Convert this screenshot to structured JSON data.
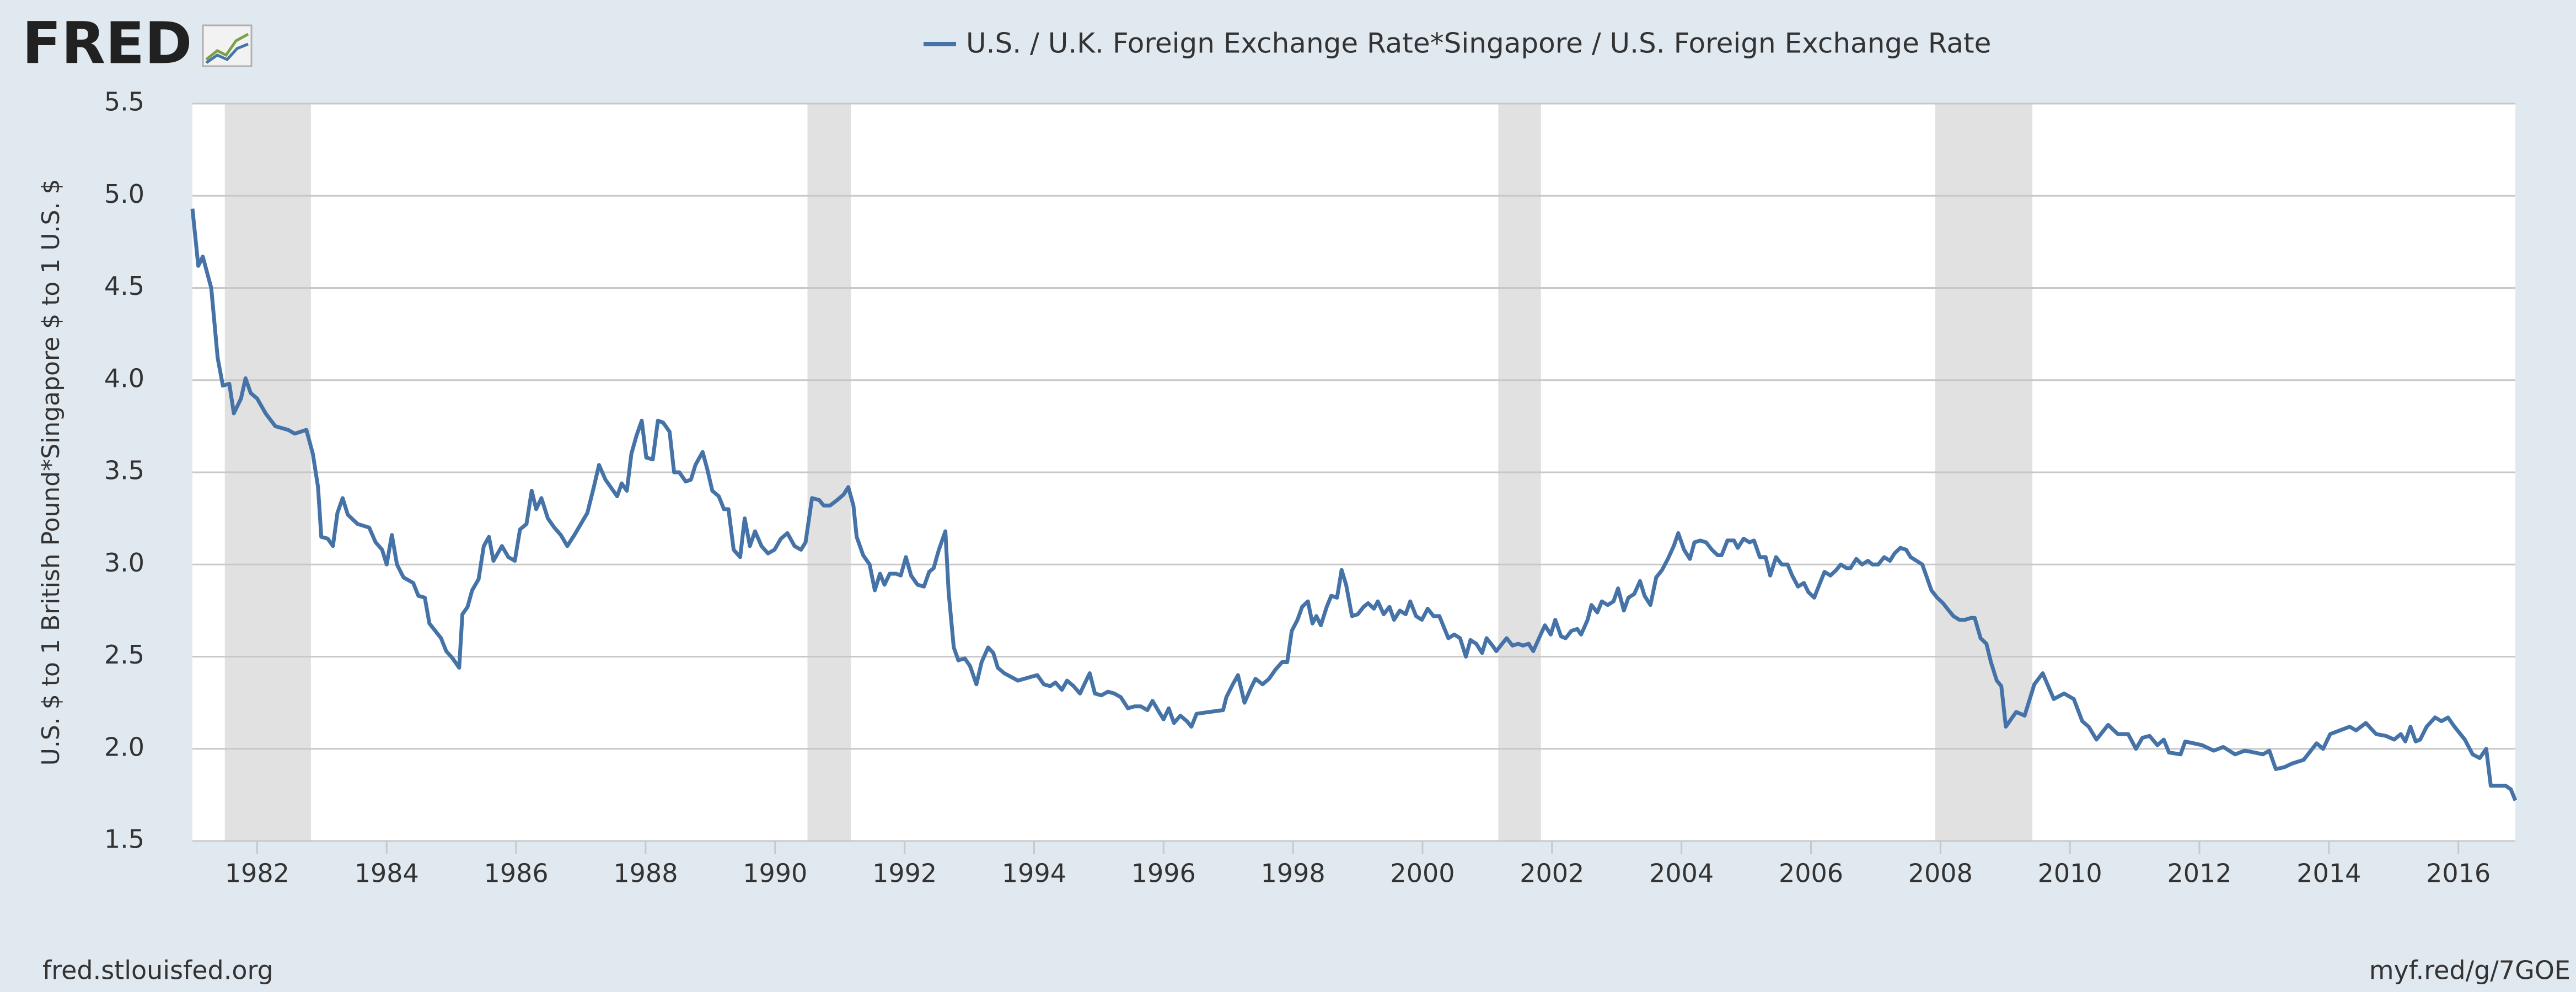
{
  "logo": "FRED",
  "footer": {
    "left": "fred.stlouisfed.org",
    "right": "myf.red/g/7GOE"
  },
  "chart_data": {
    "type": "line",
    "ylabel": "U.S. $ to 1 British Pound*Singapore $ to 1 U.S. $",
    "xlim": [
      1981.0,
      2016.88
    ],
    "ylim": [
      1.5,
      5.5
    ],
    "xticks": [
      1982,
      1984,
      1986,
      1988,
      1990,
      1992,
      1994,
      1996,
      1998,
      2000,
      2002,
      2004,
      2006,
      2008,
      2010,
      2012,
      2014,
      2016
    ],
    "yticks": [
      1.5,
      {
        "value": 2,
        "label": "2.0"
      },
      2.5,
      {
        "value": 3,
        "label": "3.0"
      },
      3.5,
      {
        "value": 4,
        "label": "4.0"
      },
      4.5,
      {
        "value": 5,
        "label": "5.0"
      },
      5.5
    ],
    "grid": true,
    "recessions": [
      [
        1981.5,
        1982.83
      ],
      [
        1990.5,
        1991.17
      ],
      [
        2001.17,
        2001.83
      ],
      [
        2007.92,
        2009.42
      ]
    ],
    "x": [
      1981.0,
      1981.09,
      1981.16,
      1981.29,
      1981.39,
      1981.47,
      1981.57,
      1981.64,
      1981.75,
      1981.82,
      1981.9,
      1982.0,
      1982.13,
      1982.28,
      1982.48,
      1982.58,
      1982.76,
      1982.86,
      1982.94,
      1982.99,
      1983.09,
      1983.17,
      1983.24,
      1983.32,
      1983.4,
      1983.55,
      1983.73,
      1983.83,
      1983.93,
      1984.0,
      1984.08,
      1984.16,
      1984.26,
      1984.41,
      1984.49,
      1984.59,
      1984.66,
      1984.84,
      1984.92,
      1985.02,
      1985.12,
      1985.17,
      1985.25,
      1985.32,
      1985.42,
      1985.5,
      1985.58,
      1985.65,
      1985.78,
      1985.88,
      1985.98,
      1986.06,
      1986.16,
      1986.24,
      1986.31,
      1986.39,
      1986.49,
      1986.59,
      1986.69,
      1986.79,
      1986.9,
      1987.0,
      1987.1,
      1987.2,
      1987.28,
      1987.38,
      1987.48,
      1987.56,
      1987.63,
      1987.71,
      1987.78,
      1987.86,
      1987.94,
      1988.01,
      1988.11,
      1988.19,
      1988.27,
      1988.37,
      1988.44,
      1988.52,
      1988.62,
      1988.7,
      1988.77,
      1988.88,
      1988.95,
      1989.03,
      1989.13,
      1989.21,
      1989.28,
      1989.36,
      1989.46,
      1989.53,
      1989.61,
      1989.69,
      1989.79,
      1989.89,
      1989.99,
      1990.09,
      1990.19,
      1990.3,
      1990.4,
      1990.47,
      1990.57,
      1990.68,
      1990.75,
      1990.85,
      1990.96,
      1991.06,
      1991.13,
      1991.21,
      1991.26,
      1991.36,
      1991.46,
      1991.54,
      1991.62,
      1991.69,
      1991.77,
      1991.87,
      1991.94,
      1992.02,
      1992.1,
      1992.2,
      1992.3,
      1992.38,
      1992.45,
      1992.53,
      1992.63,
      1992.68,
      1992.76,
      1992.83,
      1992.93,
      1993.01,
      1993.11,
      1993.19,
      1993.29,
      1993.37,
      1993.44,
      1993.54,
      1993.75,
      1993.95,
      1994.05,
      1994.15,
      1994.25,
      1994.33,
      1994.43,
      1994.51,
      1994.61,
      1994.71,
      1994.79,
      1994.86,
      1994.94,
      1995.04,
      1995.14,
      1995.24,
      1995.34,
      1995.45,
      1995.55,
      1995.65,
      1995.75,
      1995.83,
      1995.93,
      1996.0,
      1996.08,
      1996.16,
      1996.26,
      1996.36,
      1996.43,
      1996.51,
      1996.71,
      1996.92,
      1996.97,
      1997.07,
      1997.15,
      1997.25,
      1997.35,
      1997.42,
      1997.53,
      1997.63,
      1997.73,
      1997.83,
      1997.91,
      1997.98,
      1998.07,
      1998.14,
      1998.23,
      1998.3,
      1998.36,
      1998.43,
      1998.52,
      1998.59,
      1998.68,
      1998.75,
      1998.82,
      1998.91,
      1999.0,
      1999.09,
      1999.16,
      1999.25,
      1999.31,
      1999.4,
      1999.49,
      1999.56,
      1999.65,
      1999.74,
      1999.81,
      1999.9,
      1999.99,
      2000.08,
      2000.17,
      2000.26,
      2000.33,
      2000.4,
      2000.49,
      2000.58,
      2000.67,
      2000.74,
      2000.83,
      2000.92,
      2000.99,
      2001.08,
      2001.14,
      2001.23,
      2001.3,
      2001.39,
      2001.48,
      2001.55,
      2001.64,
      2001.71,
      2001.8,
      2001.89,
      2001.98,
      2002.05,
      2002.14,
      2002.21,
      2002.3,
      2002.39,
      2002.45,
      2002.55,
      2002.61,
      2002.7,
      2002.77,
      2002.86,
      2002.95,
      2003.02,
      2003.11,
      2003.18,
      2003.27,
      2003.36,
      2003.43,
      2003.52,
      2003.61,
      2003.7,
      2003.79,
      2003.88,
      2003.95,
      2004.04,
      2004.13,
      2004.2,
      2004.29,
      2004.38,
      2004.47,
      2004.56,
      2004.62,
      2004.71,
      2004.81,
      2004.87,
      2004.96,
      2005.05,
      2005.12,
      2005.21,
      2005.3,
      2005.37,
      2005.46,
      2005.55,
      2005.64,
      2005.71,
      2005.8,
      2005.89,
      2005.96,
      2006.05,
      2006.14,
      2006.21,
      2006.3,
      2006.39,
      2006.46,
      2006.55,
      2006.61,
      2006.7,
      2006.79,
      2006.88,
      2006.95,
      2007.04,
      2007.13,
      2007.22,
      2007.29,
      2007.38,
      2007.47,
      2007.54,
      2007.63,
      2007.72,
      2007.79,
      2007.86,
      2007.95,
      2008.04,
      2008.13,
      2008.2,
      2008.29,
      2008.38,
      2008.47,
      2008.53,
      2008.62,
      2008.71,
      2008.78,
      2008.87,
      2008.94,
      2009.01,
      2009.17,
      2009.3,
      2009.45,
      2009.58,
      2009.75,
      2009.91,
      2010.06,
      2010.19,
      2010.29,
      2010.41,
      2010.59,
      2010.74,
      2010.9,
      2011.02,
      2011.12,
      2011.23,
      2011.35,
      2011.45,
      2011.53,
      2011.71,
      2011.78,
      2012.04,
      2012.22,
      2012.37,
      2012.55,
      2012.7,
      2012.85,
      2012.98,
      2013.08,
      2013.18,
      2013.31,
      2013.43,
      2013.61,
      2013.81,
      2013.91,
      2014.02,
      2014.17,
      2014.32,
      2014.42,
      2014.57,
      2014.73,
      2014.88,
      2015.01,
      2015.11,
      2015.18,
      2015.26,
      2015.34,
      2015.41,
      2015.51,
      2015.64,
      2015.74,
      2015.84,
      2015.94,
      2016.1,
      2016.22,
      2016.33,
      2016.43,
      2016.5,
      2016.73,
      2016.81,
      2016.88
    ],
    "series": [
      {
        "name": "U.S. / U.K. Foreign Exchange Rate*Singapore / U.S. Foreign Exchange Rate",
        "color": "#4572a7",
        "values": [
          4.93,
          4.62,
          4.67,
          4.5,
          4.12,
          3.97,
          3.98,
          3.82,
          3.9,
          4.01,
          3.93,
          3.9,
          3.82,
          3.75,
          3.73,
          3.71,
          3.73,
          3.6,
          3.42,
          3.15,
          3.14,
          3.1,
          3.28,
          3.36,
          3.27,
          3.22,
          3.2,
          3.12,
          3.08,
          3.0,
          3.16,
          3.0,
          2.93,
          2.9,
          2.83,
          2.82,
          2.68,
          2.6,
          2.53,
          2.49,
          2.44,
          2.73,
          2.77,
          2.86,
          2.92,
          3.1,
          3.15,
          3.02,
          3.1,
          3.04,
          3.02,
          3.19,
          3.22,
          3.4,
          3.3,
          3.36,
          3.25,
          3.2,
          3.16,
          3.1,
          3.16,
          3.22,
          3.28,
          3.42,
          3.54,
          3.46,
          3.41,
          3.37,
          3.44,
          3.4,
          3.6,
          3.7,
          3.78,
          3.58,
          3.57,
          3.78,
          3.77,
          3.72,
          3.5,
          3.5,
          3.45,
          3.46,
          3.54,
          3.61,
          3.52,
          3.4,
          3.37,
          3.3,
          3.3,
          3.08,
          3.04,
          3.25,
          3.1,
          3.18,
          3.1,
          3.06,
          3.08,
          3.14,
          3.17,
          3.1,
          3.08,
          3.12,
          3.36,
          3.35,
          3.32,
          3.32,
          3.35,
          3.38,
          3.42,
          3.32,
          3.15,
          3.05,
          3.0,
          2.86,
          2.95,
          2.89,
          2.95,
          2.95,
          2.94,
          3.04,
          2.94,
          2.89,
          2.88,
          2.96,
          2.98,
          3.08,
          3.18,
          2.85,
          2.55,
          2.48,
          2.49,
          2.45,
          2.35,
          2.47,
          2.55,
          2.52,
          2.44,
          2.41,
          2.37,
          2.39,
          2.4,
          2.35,
          2.34,
          2.36,
          2.32,
          2.37,
          2.34,
          2.3,
          2.36,
          2.41,
          2.3,
          2.29,
          2.31,
          2.3,
          2.28,
          2.22,
          2.23,
          2.23,
          2.21,
          2.26,
          2.2,
          2.16,
          2.22,
          2.14,
          2.18,
          2.15,
          2.12,
          2.19,
          2.2,
          2.21,
          2.28,
          2.35,
          2.4,
          2.25,
          2.33,
          2.38,
          2.35,
          2.38,
          2.43,
          2.47,
          2.47,
          2.64,
          2.7,
          2.77,
          2.8,
          2.68,
          2.72,
          2.67,
          2.77,
          2.83,
          2.82,
          2.97,
          2.89,
          2.72,
          2.73,
          2.77,
          2.79,
          2.76,
          2.8,
          2.73,
          2.77,
          2.7,
          2.75,
          2.73,
          2.8,
          2.72,
          2.7,
          2.76,
          2.72,
          2.72,
          2.66,
          2.6,
          2.62,
          2.6,
          2.5,
          2.59,
          2.57,
          2.52,
          2.6,
          2.56,
          2.53,
          2.57,
          2.6,
          2.56,
          2.57,
          2.56,
          2.57,
          2.53,
          2.6,
          2.67,
          2.62,
          2.7,
          2.61,
          2.6,
          2.64,
          2.65,
          2.62,
          2.7,
          2.78,
          2.74,
          2.8,
          2.78,
          2.8,
          2.87,
          2.75,
          2.82,
          2.84,
          2.91,
          2.83,
          2.78,
          2.93,
          2.97,
          3.03,
          3.1,
          3.17,
          3.08,
          3.03,
          3.12,
          3.13,
          3.12,
          3.08,
          3.05,
          3.05,
          3.13,
          3.13,
          3.09,
          3.14,
          3.12,
          3.13,
          3.04,
          3.04,
          2.94,
          3.04,
          3.0,
          3.0,
          2.94,
          2.88,
          2.9,
          2.85,
          2.82,
          2.9,
          2.96,
          2.94,
          2.97,
          3.0,
          2.98,
          2.98,
          3.03,
          3.0,
          3.02,
          3.0,
          3.0,
          3.04,
          3.02,
          3.06,
          3.09,
          3.08,
          3.04,
          3.02,
          3.0,
          2.93,
          2.86,
          2.82,
          2.79,
          2.75,
          2.72,
          2.7,
          2.7,
          2.71,
          2.71,
          2.6,
          2.57,
          2.47,
          2.37,
          2.34,
          2.12,
          2.2,
          2.18,
          2.35,
          2.41,
          2.27,
          2.3,
          2.27,
          2.15,
          2.12,
          2.05,
          2.13,
          2.08,
          2.08,
          2.0,
          2.06,
          2.07,
          2.02,
          2.05,
          1.98,
          1.97,
          2.04,
          2.02,
          1.99,
          2.01,
          1.97,
          1.99,
          1.98,
          1.97,
          1.99,
          1.89,
          1.9,
          1.92,
          1.94,
          2.03,
          2.0,
          2.08,
          2.1,
          2.12,
          2.1,
          2.14,
          2.08,
          2.07,
          2.05,
          2.08,
          2.04,
          2.12,
          2.04,
          2.05,
          2.12,
          2.17,
          2.15,
          2.17,
          2.12,
          2.05,
          1.97,
          1.95,
          2.0,
          1.8,
          1.8,
          1.78,
          1.72
        ]
      }
    ]
  }
}
